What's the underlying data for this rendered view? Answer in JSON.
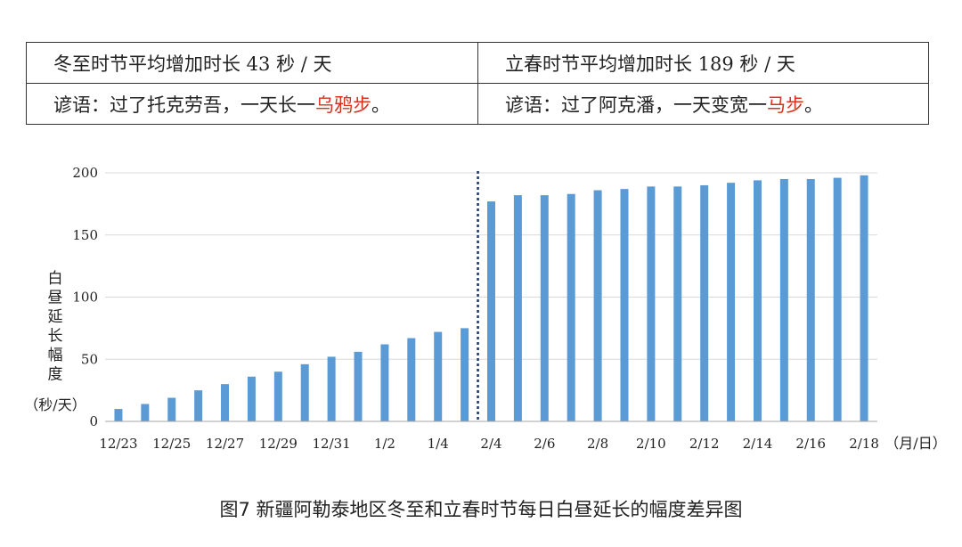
{
  "table": {
    "row1": {
      "left": "冬至时节平均增加时长 43 秒 / 天",
      "right": "立春时节平均增加时长 189 秒 / 天"
    },
    "row2": {
      "left_prefix": "谚语：过了托克劳吾，一天长一",
      "left_highlight": "乌鸦步",
      "left_suffix": "。",
      "right_prefix": "谚语：过了阿克潘，一天变宽一",
      "right_highlight": "马步",
      "right_suffix": "。"
    }
  },
  "colors": {
    "bar": "#5b9bd5",
    "highlight": "#d8321e",
    "divider": "#1f3864",
    "grid": "#d9d9d9"
  },
  "chart_data": {
    "type": "bar",
    "ylabel": "白昼延长幅度（秒/天）",
    "xlabel": "（月/日）",
    "ylim": [
      0,
      200
    ],
    "yticks": [
      0,
      50,
      100,
      150,
      200
    ],
    "grid": true,
    "categories": [
      "12/23",
      "12/24",
      "12/25",
      "12/26",
      "12/27",
      "12/28",
      "12/29",
      "12/30",
      "12/31",
      "1/1",
      "1/2",
      "1/3",
      "1/4",
      "1/5",
      "2/4",
      "2/5",
      "2/6",
      "2/7",
      "2/8",
      "2/9",
      "2/10",
      "2/11",
      "2/12",
      "2/13",
      "2/14",
      "2/15",
      "2/16",
      "2/17",
      "2/18"
    ],
    "tick_labels": [
      "12/23",
      "12/25",
      "12/27",
      "12/29",
      "12/31",
      "1/2",
      "1/4",
      "2/4",
      "2/6",
      "2/8",
      "2/10",
      "2/12",
      "2/14",
      "2/16",
      "2/18"
    ],
    "values": [
      10,
      14,
      19,
      25,
      30,
      36,
      40,
      46,
      52,
      56,
      62,
      67,
      72,
      75,
      177,
      182,
      182,
      183,
      186,
      187,
      189,
      189,
      190,
      192,
      194,
      195,
      195,
      196,
      198
    ],
    "divider_after": "1/5"
  },
  "caption": "图7  新疆阿勒泰地区冬至和立春时节每日白昼延长的幅度差异图"
}
